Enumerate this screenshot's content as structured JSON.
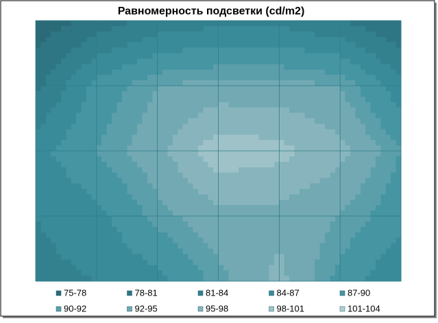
{
  "chart_data": {
    "type": "contour",
    "title": "Равномерность подсветки (cd/m2)",
    "z": [
      [
        76,
        79,
        82,
        83,
        83,
        81,
        78
      ],
      [
        80,
        88,
        92,
        93,
        93,
        92,
        85
      ],
      [
        86,
        90,
        94,
        100,
        99,
        96,
        90
      ],
      [
        84,
        86,
        91,
        94,
        94,
        92,
        88
      ],
      [
        83,
        84,
        86,
        91,
        96,
        89,
        84
      ]
    ],
    "bands": [
      {
        "label": "75-78",
        "min": 75,
        "max": 78,
        "color": "#2b6b78"
      },
      {
        "label": "78-81",
        "min": 78,
        "max": 81,
        "color": "#2f7684"
      },
      {
        "label": "81-84",
        "min": 81,
        "max": 84,
        "color": "#33818f"
      },
      {
        "label": "84-87",
        "min": 84,
        "max": 87,
        "color": "#398b9a"
      },
      {
        "label": "87-90",
        "min": 87,
        "max": 90,
        "color": "#4595a3"
      },
      {
        "label": "90-92",
        "min": 90,
        "max": 92,
        "color": "#5b9fab"
      },
      {
        "label": "92-95",
        "min": 92,
        "max": 95,
        "color": "#72a9b3"
      },
      {
        "label": "95-98",
        "min": 95,
        "max": 98,
        "color": "#88b5bd"
      },
      {
        "label": "98-101",
        "min": 98,
        "max": 101,
        "color": "#9ec2c8"
      },
      {
        "label": "101-104",
        "min": 101,
        "max": 104,
        "color": "#b3cfd4"
      }
    ],
    "grid": true
  }
}
